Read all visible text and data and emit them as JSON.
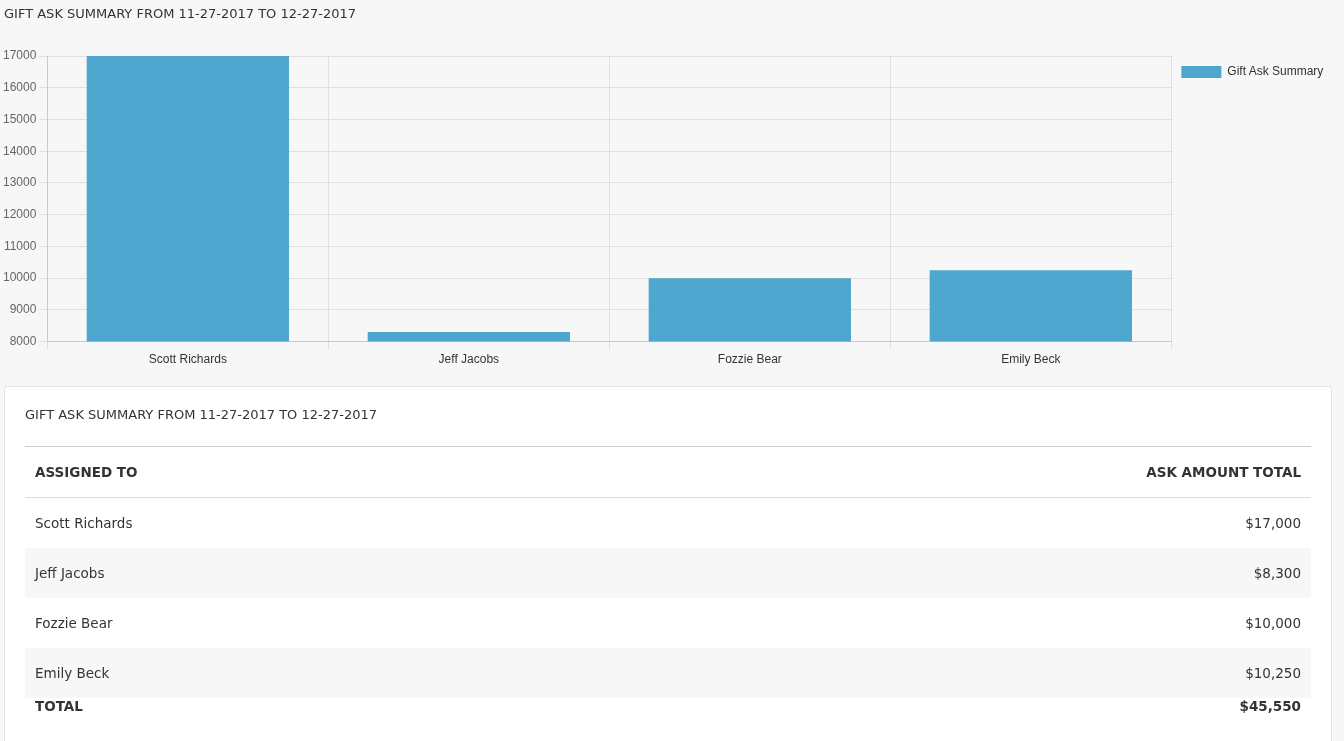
{
  "chart_data": {
    "type": "bar",
    "title": "GIFT ASK SUMMARY FROM 11-27-2017 TO 12-27-2017",
    "categories": [
      "Scott Richards",
      "Jeff Jacobs",
      "Fozzie Bear",
      "Emily Beck"
    ],
    "series": [
      {
        "name": "Gift Ask Summary",
        "color": "#4fa6cf",
        "values": [
          17000,
          8300,
          10000,
          10250
        ]
      }
    ],
    "ylim": [
      8000,
      17000
    ],
    "yticks": [
      8000,
      9000,
      10000,
      11000,
      12000,
      13000,
      14000,
      15000,
      16000,
      17000
    ],
    "grid": true,
    "legend": "top right",
    "annotations": [
      "GIFT ASK SUMMARY FROM 11-27-2017 TO 12-27-2017",
      "ASSIGNED TO",
      "ASK AMOUNT TOTAL",
      "$17,000",
      "$8,300",
      "$10,000",
      "$10,250",
      "TOTAL",
      "$45,550"
    ]
  }
}
